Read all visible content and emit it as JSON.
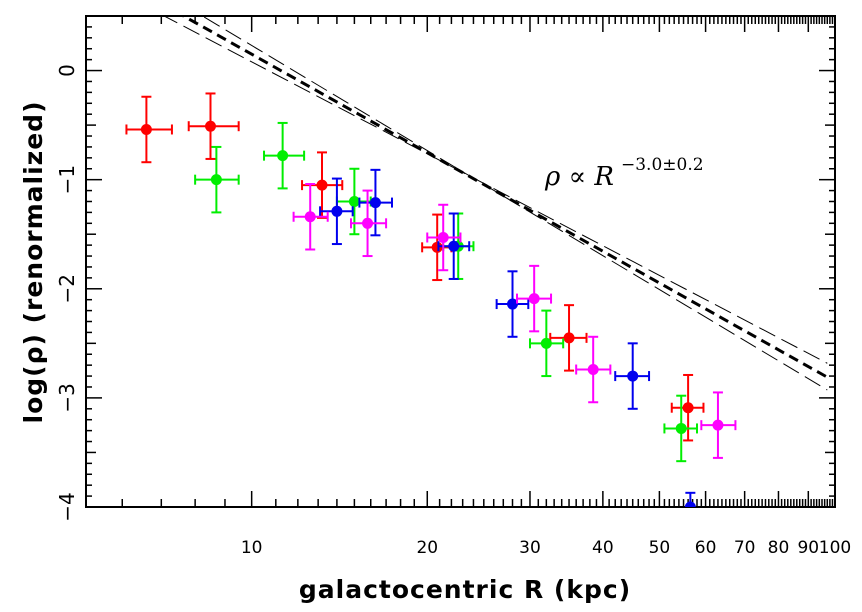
{
  "chart_data": {
    "type": "scatter",
    "xlabel": "galactocentric R (kpc)",
    "ylabel": "log(ρ) (renormalized)",
    "xscale": "log",
    "xlim": [
      5.2,
      100
    ],
    "ylim": [
      -4.0,
      0.5
    ],
    "x_tick_labels": [
      10,
      20,
      30,
      40,
      50,
      60,
      70,
      80,
      90,
      100
    ],
    "y_tick_labels": [
      0,
      -1,
      -2,
      -3,
      -4
    ],
    "y_tick_text": {
      "0": "0",
      "-1": "−1",
      "-2": "−2",
      "-3": "−3",
      "-4": "−4"
    },
    "annotation": {
      "main": "ρ ∝ R",
      "exponent": "−3.0±0.2"
    },
    "grid": false,
    "legend": "none",
    "colors": {
      "red": "#ff0000",
      "green": "#00ee00",
      "blue": "#0000ee",
      "magenta": "#ff00ff",
      "fit": "#000000"
    },
    "fit": {
      "slope": -3.0,
      "intercept": 3.15
    },
    "fit_bounds": [
      {
        "slope": -2.8,
        "intercept": 2.88
      },
      {
        "slope": -3.2,
        "intercept": 3.43
      }
    ],
    "series": [
      {
        "color": "red",
        "points": [
          {
            "x": 6.6,
            "y": -0.54,
            "xlo": 6.1,
            "xhi": 7.3,
            "yerr": 0.3
          },
          {
            "x": 8.5,
            "y": -0.51,
            "xlo": 7.8,
            "xhi": 9.5,
            "yerr": 0.3
          },
          {
            "x": 13.2,
            "y": -1.05,
            "xlo": 12.2,
            "xhi": 14.3,
            "yerr": 0.3
          },
          {
            "x": 20.8,
            "y": -1.62,
            "xlo": 19.6,
            "xhi": 22.0,
            "yerr": 0.3
          },
          {
            "x": 35.0,
            "y": -2.45,
            "xlo": 32.5,
            "xhi": 37.5,
            "yerr": 0.3
          },
          {
            "x": 56.0,
            "y": -3.09,
            "xlo": 52.5,
            "xhi": 59.5,
            "yerr": 0.3
          }
        ]
      },
      {
        "color": "green",
        "points": [
          {
            "x": 8.7,
            "y": -1.0,
            "xlo": 8.0,
            "xhi": 9.5,
            "yerr": 0.3
          },
          {
            "x": 11.3,
            "y": -0.78,
            "xlo": 10.5,
            "xhi": 12.3,
            "yerr": 0.3
          },
          {
            "x": 15.0,
            "y": -1.2,
            "xlo": 14.0,
            "xhi": 16.0,
            "yerr": 0.3
          },
          {
            "x": 22.6,
            "y": -1.61,
            "xlo": 21.3,
            "xhi": 24.0,
            "yerr": 0.3
          },
          {
            "x": 32.0,
            "y": -2.5,
            "xlo": 30.0,
            "xhi": 34.2,
            "yerr": 0.3
          },
          {
            "x": 54.5,
            "y": -3.28,
            "xlo": 51.0,
            "xhi": 58.0,
            "yerr": 0.3
          }
        ]
      },
      {
        "color": "blue",
        "points": [
          {
            "x": 14.0,
            "y": -1.29,
            "xlo": 13.1,
            "xhi": 14.9,
            "yerr": 0.3
          },
          {
            "x": 16.3,
            "y": -1.21,
            "xlo": 15.3,
            "xhi": 17.4,
            "yerr": 0.3
          },
          {
            "x": 22.2,
            "y": -1.61,
            "xlo": 20.9,
            "xhi": 23.6,
            "yerr": 0.3
          },
          {
            "x": 28.0,
            "y": -2.14,
            "xlo": 26.3,
            "xhi": 29.8,
            "yerr": 0.3
          },
          {
            "x": 45.0,
            "y": -2.8,
            "xlo": 42.0,
            "xhi": 48.0,
            "yerr": 0.3
          },
          {
            "x": 56.5,
            "y": -4.0,
            "xlo": 56.5,
            "xhi": 56.5,
            "yerr": 0.13
          }
        ]
      },
      {
        "color": "magenta",
        "points": [
          {
            "x": 12.6,
            "y": -1.34,
            "xlo": 11.8,
            "xhi": 13.5,
            "yerr": 0.3
          },
          {
            "x": 15.8,
            "y": -1.4,
            "xlo": 14.8,
            "xhi": 17.0,
            "yerr": 0.3
          },
          {
            "x": 21.3,
            "y": -1.53,
            "xlo": 20.0,
            "xhi": 22.8,
            "yerr": 0.3
          },
          {
            "x": 30.5,
            "y": -2.09,
            "xlo": 28.5,
            "xhi": 32.6,
            "yerr": 0.3
          },
          {
            "x": 38.5,
            "y": -2.74,
            "xlo": 36.0,
            "xhi": 41.2,
            "yerr": 0.3
          },
          {
            "x": 63.0,
            "y": -3.25,
            "xlo": 59.0,
            "xhi": 67.5,
            "yerr": 0.3
          }
        ]
      }
    ]
  }
}
